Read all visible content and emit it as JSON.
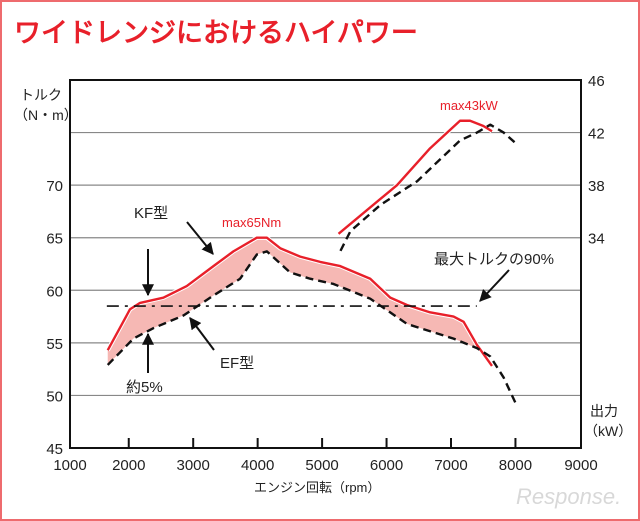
{
  "chart_data": {
    "type": "line",
    "title": "ワイドレンジにおけるハイパワー",
    "xlabel": "エンジン回転（rpm）",
    "ylabel_left": [
      "トルク",
      "（N・m）"
    ],
    "ylabel_right": [
      "出力",
      "（kW）"
    ],
    "xlim": [
      1000,
      9000
    ],
    "ylim_left": [
      45,
      80
    ],
    "ylim_right": [
      18,
      46
    ],
    "x_ticks": [
      "1000",
      "2000",
      "3000",
      "4000",
      "5000",
      "6000",
      "7000",
      "8000",
      "9000"
    ],
    "y_left_ticks": [
      {
        "value": 45,
        "label": "45"
      },
      {
        "value": 50,
        "label": "50"
      },
      {
        "value": 55,
        "label": "55"
      },
      {
        "value": 60,
        "label": "60"
      },
      {
        "value": 65,
        "label": "65"
      },
      {
        "value": 70,
        "label": "70"
      }
    ],
    "y_right_ticks": [
      {
        "value": 34,
        "label": "34"
      },
      {
        "value": 38,
        "label": "38"
      },
      {
        "value": 42,
        "label": "42"
      },
      {
        "value": 46,
        "label": "46"
      }
    ],
    "gridlines_left": [
      50,
      55,
      60,
      65,
      70,
      75
    ],
    "grid": true,
    "series": [
      {
        "name": "KF型 トルク",
        "axis": "left",
        "style": "solid",
        "color": "#e8202a",
        "x": [
          1674,
          2020,
          2175,
          2537,
          2900,
          3314,
          3624,
          3987,
          4143,
          4350,
          4660,
          4970,
          5281,
          5747,
          6057,
          6317,
          6675,
          7040,
          7196,
          7403,
          7636
        ],
        "y": [
          54.3,
          58.2,
          58.8,
          59.3,
          60.4,
          62.3,
          63.7,
          65.0,
          65.0,
          64.0,
          63.2,
          62.7,
          62.3,
          61.1,
          59.3,
          58.6,
          57.9,
          57.5,
          57.0,
          54.8,
          52.8
        ]
      },
      {
        "name": "EF型 トルク",
        "axis": "left",
        "style": "dashed",
        "color": "#111111",
        "x": [
          1674,
          2072,
          2382,
          2848,
          3314,
          3728,
          3987,
          4143,
          4503,
          4814,
          5177,
          5747,
          6317,
          7040,
          7403,
          7610,
          7817,
          8000
        ],
        "y": [
          52.9,
          55.4,
          56.4,
          57.6,
          59.5,
          61.1,
          63.4,
          63.7,
          61.7,
          61.1,
          60.6,
          59.2,
          56.8,
          55.4,
          54.5,
          53.7,
          51.7,
          49.3
        ]
      },
      {
        "name": "KF型 出力",
        "axis": "right",
        "style": "solid",
        "color": "#e8202a",
        "x": [
          5255,
          6162,
          6675,
          7140,
          7296,
          7503,
          7636
        ],
        "y": [
          34.3,
          38.0,
          40.8,
          42.9,
          42.9,
          42.5,
          42.1
        ]
      },
      {
        "name": "EF型 出力",
        "axis": "right",
        "style": "dashed",
        "color": "#111111",
        "x": [
          5285,
          5440,
          5906,
          6475,
          7140,
          7403,
          7610,
          7817,
          8025
        ],
        "y": [
          33.0,
          34.5,
          36.5,
          38.3,
          41.4,
          42.0,
          42.6,
          42.0,
          41.1
        ]
      },
      {
        "name": "最大トルクの90%",
        "axis": "left",
        "style": "dashdot",
        "color": "#111111",
        "x": [
          1660,
          7400
        ],
        "y": [
          58.5,
          58.5
        ]
      }
    ],
    "annotations": {
      "kf": "KF型",
      "ef": "EF型",
      "diff": "約5%",
      "max_torque": "max65Nm",
      "max_power": "max43kW",
      "ninety": "最大トルクの90%"
    },
    "fill_color": "#f6b8b4"
  },
  "watermark": "Response."
}
